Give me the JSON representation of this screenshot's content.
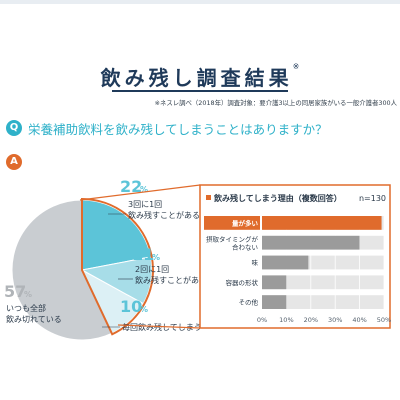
{
  "header": {
    "title": "飲み残し調査結果",
    "title_mark": "※",
    "source_note": "※ネスレ調べ（2018年）調査対象：要介護3以上の同居家族がいる一般介護者300人"
  },
  "question": {
    "badge": "Q",
    "text": "栄養補助飲料を飲み残してしまうことはありますか？"
  },
  "answer": {
    "badge": "A"
  },
  "colors": {
    "accent_orange": "#e06b2c",
    "teal": "#2fb1c9",
    "pie_22": "#5cc4d8",
    "pie_11": "#a7dde8",
    "pie_10": "#dcf0f5",
    "pie_57": "#c9cdd1",
    "bar_grey": "#9b9b9b",
    "bar_bg": "#e6e6e6"
  },
  "chart_data": [
    {
      "type": "pie",
      "slices": [
        {
          "value": 22,
          "value_label": "22",
          "unit": "%",
          "label_line1": "3回に1回",
          "label_line2": "飲み残すことがある"
        },
        {
          "value": 11,
          "value_label": "11",
          "unit": "%",
          "label_line1": "2回に1回",
          "label_line2": "飲み残すことがある"
        },
        {
          "value": 10,
          "value_label": "10",
          "unit": "%",
          "label_line1": "毎回飲み残してしまう"
        },
        {
          "value": 57,
          "value_label": "57",
          "unit": "%",
          "label_line1": "いつも全部",
          "label_line2": "飲み切れている"
        }
      ]
    },
    {
      "type": "bar",
      "orientation": "horizontal",
      "title": "飲み残してしまう理由（複数回答）",
      "n_label": "n=130",
      "categories": [
        {
          "line1": "量が多い"
        },
        {
          "line1": "摂取タイミングが",
          "line2": "合わない"
        },
        {
          "line1": "味"
        },
        {
          "line1": "容器の形状"
        },
        {
          "line1": "その他"
        }
      ],
      "values": [
        49,
        40,
        19,
        10,
        10
      ],
      "xlim": [
        0,
        50
      ],
      "xticks": [
        "0%",
        "10%",
        "20%",
        "30%",
        "40%",
        "50%"
      ],
      "highlight_index": 0,
      "grid": true
    }
  ]
}
